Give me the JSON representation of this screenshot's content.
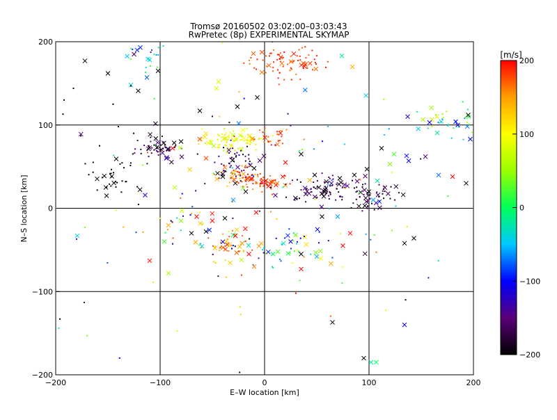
{
  "chart_data": {
    "type": "scatter",
    "title": "Tromsø 20160502 03:02:00–03:03:43",
    "subtitle": "RwPretec (8p) EXPERIMENTAL SKYMAP",
    "xlabel": "E–W location [km]",
    "ylabel": "N–S location [km]",
    "xlim": [
      -200,
      200
    ],
    "ylim": [
      -200,
      200
    ],
    "x_ticks": [
      -200,
      -100,
      0,
      100,
      200
    ],
    "y_ticks": [
      -200,
      -100,
      0,
      100,
      200
    ],
    "x_tick_labels": [
      "−200",
      "−100",
      "0",
      "100",
      "200"
    ],
    "y_tick_labels": [
      "−200",
      "−100",
      "0",
      "100",
      "200"
    ],
    "grid": true,
    "marker_legend": "cross = large marker, dot = small marker",
    "colorbar": {
      "label": "[m/s]",
      "min": -200,
      "max": 200,
      "ticks": [
        200,
        100,
        0,
        -100,
        -200
      ],
      "tick_labels": [
        "200",
        "100",
        "0",
        "−100",
        "−200"
      ],
      "colormap": [
        "#000000",
        "#5a0078",
        "#0000ff",
        "#00c8ff",
        "#00ff5a",
        "#9aff00",
        "#ffff00",
        "#ffa000",
        "#ff0000"
      ]
    },
    "clusters": [
      {
        "cx": 20,
        "cy": 175,
        "sx": 20,
        "sy": 10,
        "n": 80,
        "v": [
          160,
          200
        ]
      },
      {
        "cx": -115,
        "cy": 180,
        "sx": 12,
        "sy": 10,
        "n": 18,
        "v": [
          -150,
          40
        ]
      },
      {
        "cx": -100,
        "cy": 72,
        "sx": 12,
        "sy": 8,
        "n": 60,
        "v": [
          -200,
          -140
        ]
      },
      {
        "cx": -30,
        "cy": 82,
        "sx": 15,
        "sy": 6,
        "n": 85,
        "v": [
          60,
          120
        ]
      },
      {
        "cx": 5,
        "cy": 85,
        "sx": 10,
        "sy": 6,
        "n": 28,
        "v": [
          150,
          200
        ]
      },
      {
        "cx": -30,
        "cy": 55,
        "sx": 12,
        "sy": 10,
        "n": 55,
        "v": [
          -200,
          -120
        ]
      },
      {
        "cx": -25,
        "cy": 40,
        "sx": 10,
        "sy": 8,
        "n": 45,
        "v": [
          130,
          200
        ]
      },
      {
        "cx": 0,
        "cy": 30,
        "sx": 12,
        "sy": 6,
        "n": 45,
        "v": [
          150,
          200
        ]
      },
      {
        "cx": 55,
        "cy": 25,
        "sx": 18,
        "sy": 8,
        "n": 70,
        "v": [
          -200,
          -140
        ]
      },
      {
        "cx": 100,
        "cy": 15,
        "sx": 14,
        "sy": 10,
        "n": 55,
        "v": [
          -200,
          -140
        ]
      },
      {
        "cx": -145,
        "cy": 35,
        "sx": 12,
        "sy": 14,
        "n": 35,
        "v": [
          -200,
          -190
        ]
      },
      {
        "cx": 175,
        "cy": 105,
        "sx": 18,
        "sy": 10,
        "n": 35,
        "v": [
          -90,
          80
        ]
      },
      {
        "cx": 20,
        "cy": -45,
        "sx": 20,
        "sy": 12,
        "n": 45,
        "v": [
          -120,
          120
        ]
      },
      {
        "cx": -30,
        "cy": -45,
        "sx": 15,
        "sy": 12,
        "n": 40,
        "v": [
          120,
          200
        ]
      },
      {
        "cx": -60,
        "cy": -25,
        "sx": 20,
        "sy": 15,
        "n": 25,
        "v": [
          -200,
          200
        ]
      },
      {
        "cx": 0,
        "cy": 0,
        "sx": 100,
        "sy": 90,
        "n": 120,
        "v": [
          -200,
          200
        ]
      }
    ],
    "points": [
      {
        "x": -172,
        "y": 177,
        "v": -200,
        "m": "x"
      },
      {
        "x": -150,
        "y": 162,
        "v": -200,
        "m": "x"
      },
      {
        "x": -122,
        "y": 190,
        "v": -90,
        "m": "x"
      },
      {
        "x": -119,
        "y": 193,
        "v": -90,
        "m": "x"
      },
      {
        "x": -125,
        "y": 185,
        "v": -160,
        "m": "x"
      },
      {
        "x": -128,
        "y": 148,
        "v": -40,
        "m": "x"
      },
      {
        "x": -121,
        "y": 141,
        "v": -200,
        "m": "x"
      },
      {
        "x": -102,
        "y": 165,
        "v": -200,
        "m": "x"
      },
      {
        "x": -62,
        "y": 117,
        "v": -200,
        "m": "x"
      },
      {
        "x": -46,
        "y": 144,
        "v": 80,
        "m": "x"
      },
      {
        "x": -44,
        "y": 152,
        "v": 80,
        "m": "x"
      },
      {
        "x": -26,
        "y": 122,
        "v": -200,
        "m": "x"
      },
      {
        "x": -7,
        "y": 133,
        "v": -200,
        "m": "x"
      },
      {
        "x": 74,
        "y": 183,
        "v": -20,
        "m": "x"
      },
      {
        "x": -152,
        "y": 25,
        "v": -200,
        "m": "x"
      },
      {
        "x": -103,
        "y": 73,
        "v": -200,
        "m": "x"
      },
      {
        "x": -94,
        "y": 60,
        "v": -120,
        "m": "x"
      },
      {
        "x": -88,
        "y": 72,
        "v": 200,
        "m": "x"
      },
      {
        "x": -86,
        "y": 25,
        "v": 60,
        "m": "x"
      },
      {
        "x": -62,
        "y": 83,
        "v": 180,
        "m": "x"
      },
      {
        "x": -56,
        "y": 60,
        "v": 180,
        "m": "x"
      },
      {
        "x": -45,
        "y": 42,
        "v": -200,
        "m": "x"
      },
      {
        "x": -40,
        "y": 38,
        "v": -200,
        "m": "x"
      },
      {
        "x": -30,
        "y": 10,
        "v": -60,
        "m": "x"
      },
      {
        "x": -28,
        "y": 30,
        "v": -200,
        "m": "x"
      },
      {
        "x": -18,
        "y": 20,
        "v": -200,
        "m": "x"
      },
      {
        "x": -10,
        "y": 48,
        "v": -200,
        "m": "x"
      },
      {
        "x": 20,
        "y": 55,
        "v": 200,
        "m": "x"
      },
      {
        "x": 35,
        "y": 65,
        "v": -200,
        "m": "x"
      },
      {
        "x": 48,
        "y": 40,
        "v": -200,
        "m": "x"
      },
      {
        "x": 52,
        "y": 25,
        "v": -200,
        "m": "x"
      },
      {
        "x": 58,
        "y": 22,
        "v": -200,
        "m": "x"
      },
      {
        "x": 64,
        "y": 30,
        "v": -120,
        "m": "x"
      },
      {
        "x": 72,
        "y": 36,
        "v": -200,
        "m": "x"
      },
      {
        "x": 86,
        "y": 40,
        "v": -200,
        "m": "x"
      },
      {
        "x": 98,
        "y": 47,
        "v": -200,
        "m": "x"
      },
      {
        "x": 100,
        "y": 20,
        "v": -200,
        "m": "x"
      },
      {
        "x": 96,
        "y": 3,
        "v": -200,
        "m": "x"
      },
      {
        "x": 104,
        "y": 10,
        "v": -60,
        "m": "x"
      },
      {
        "x": 110,
        "y": 8,
        "v": -90,
        "m": "x"
      },
      {
        "x": 108,
        "y": 33,
        "v": -20,
        "m": "x"
      },
      {
        "x": 120,
        "y": 53,
        "v": 40,
        "m": "x"
      },
      {
        "x": 112,
        "y": 72,
        "v": -200,
        "m": "x"
      },
      {
        "x": 124,
        "y": 65,
        "v": 20,
        "m": "x"
      },
      {
        "x": 138,
        "y": 57,
        "v": -100,
        "m": "x"
      },
      {
        "x": 137,
        "y": 110,
        "v": -120,
        "m": "x"
      },
      {
        "x": 136,
        "y": 63,
        "v": -100,
        "m": "x"
      },
      {
        "x": 154,
        "y": 62,
        "v": -150,
        "m": "x"
      },
      {
        "x": 158,
        "y": 103,
        "v": -110,
        "m": "x"
      },
      {
        "x": 165,
        "y": 110,
        "v": 80,
        "m": "x"
      },
      {
        "x": 183,
        "y": 104,
        "v": -100,
        "m": "x"
      },
      {
        "x": 185,
        "y": 100,
        "v": -100,
        "m": "x"
      },
      {
        "x": 195,
        "y": 112,
        "v": -200,
        "m": "x"
      },
      {
        "x": 197,
        "y": 83,
        "v": -100,
        "m": "x"
      },
      {
        "x": 180,
        "y": 38,
        "v": 200,
        "m": "x"
      },
      {
        "x": 193,
        "y": 30,
        "v": -200,
        "m": "x"
      },
      {
        "x": -96,
        "y": -40,
        "v": 20,
        "m": "x"
      },
      {
        "x": -80,
        "y": -15,
        "v": 40,
        "m": "x"
      },
      {
        "x": -70,
        "y": -30,
        "v": -200,
        "m": "x"
      },
      {
        "x": -65,
        "y": -10,
        "v": 200,
        "m": "x"
      },
      {
        "x": -56,
        "y": -28,
        "v": -200,
        "m": "x"
      },
      {
        "x": -50,
        "y": -15,
        "v": 200,
        "m": "x"
      },
      {
        "x": -38,
        "y": -12,
        "v": -200,
        "m": "x"
      },
      {
        "x": -28,
        "y": -33,
        "v": 200,
        "m": "x"
      },
      {
        "x": -22,
        "y": -62,
        "v": 60,
        "m": "x"
      },
      {
        "x": -15,
        "y": -55,
        "v": 200,
        "m": "x"
      },
      {
        "x": -10,
        "y": -70,
        "v": 160,
        "m": "x"
      },
      {
        "x": -8,
        "y": -5,
        "v": 200,
        "m": "x"
      },
      {
        "x": 8,
        "y": -55,
        "v": 0,
        "m": "x"
      },
      {
        "x": 25,
        "y": -40,
        "v": -110,
        "m": "x"
      },
      {
        "x": 35,
        "y": -55,
        "v": -200,
        "m": "x"
      },
      {
        "x": 50,
        "y": -58,
        "v": -60,
        "m": "x"
      },
      {
        "x": 55,
        "y": -10,
        "v": -200,
        "m": "x"
      },
      {
        "x": 70,
        "y": -10,
        "v": -60,
        "m": "x"
      },
      {
        "x": 75,
        "y": -45,
        "v": 200,
        "m": "x"
      },
      {
        "x": 82,
        "y": -30,
        "v": 200,
        "m": "x"
      },
      {
        "x": -110,
        "y": -63,
        "v": 200,
        "m": "x"
      },
      {
        "x": -92,
        "y": -78,
        "v": 60,
        "m": "x"
      },
      {
        "x": 35,
        "y": -73,
        "v": 200,
        "m": "x"
      },
      {
        "x": 65,
        "y": -137,
        "v": -200,
        "m": "x"
      },
      {
        "x": 95,
        "y": -180,
        "v": -200,
        "m": "x"
      },
      {
        "x": 102,
        "y": -185,
        "v": -20,
        "m": "x"
      },
      {
        "x": 107,
        "y": -185,
        "v": 0,
        "m": "x"
      },
      {
        "x": 134,
        "y": -42,
        "v": -200,
        "m": "x"
      },
      {
        "x": 143,
        "y": -36,
        "v": -200,
        "m": "x"
      },
      {
        "x": 134,
        "y": -140,
        "v": -110,
        "m": "x"
      },
      {
        "x": -196,
        "y": -133,
        "v": -200,
        "m": "d"
      },
      {
        "x": -197,
        "y": -144,
        "v": 0,
        "m": "d"
      },
      {
        "x": -170,
        "y": -153,
        "v": 40,
        "m": "d"
      },
      {
        "x": -172,
        "y": -23,
        "v": 40,
        "m": "d"
      },
      {
        "x": -180,
        "y": -37,
        "v": -110,
        "m": "d"
      },
      {
        "x": 135,
        "y": -110,
        "v": -200,
        "m": "d"
      },
      {
        "x": -192,
        "y": 130,
        "v": -200,
        "m": "d"
      },
      {
        "x": -183,
        "y": 144,
        "v": -200,
        "m": "d"
      },
      {
        "x": -176,
        "y": 87,
        "v": -200,
        "m": "d"
      },
      {
        "x": -145,
        "y": 125,
        "v": -200,
        "m": "d"
      },
      {
        "x": -128,
        "y": 147,
        "v": -200,
        "m": "d"
      },
      {
        "x": -193,
        "y": 113,
        "v": -200,
        "m": "d"
      },
      {
        "x": -140,
        "y": 98,
        "v": -200,
        "m": "d"
      },
      {
        "x": -158,
        "y": 75,
        "v": -200,
        "m": "d"
      },
      {
        "x": 30,
        "y": -102,
        "v": 200,
        "m": "d"
      }
    ]
  }
}
